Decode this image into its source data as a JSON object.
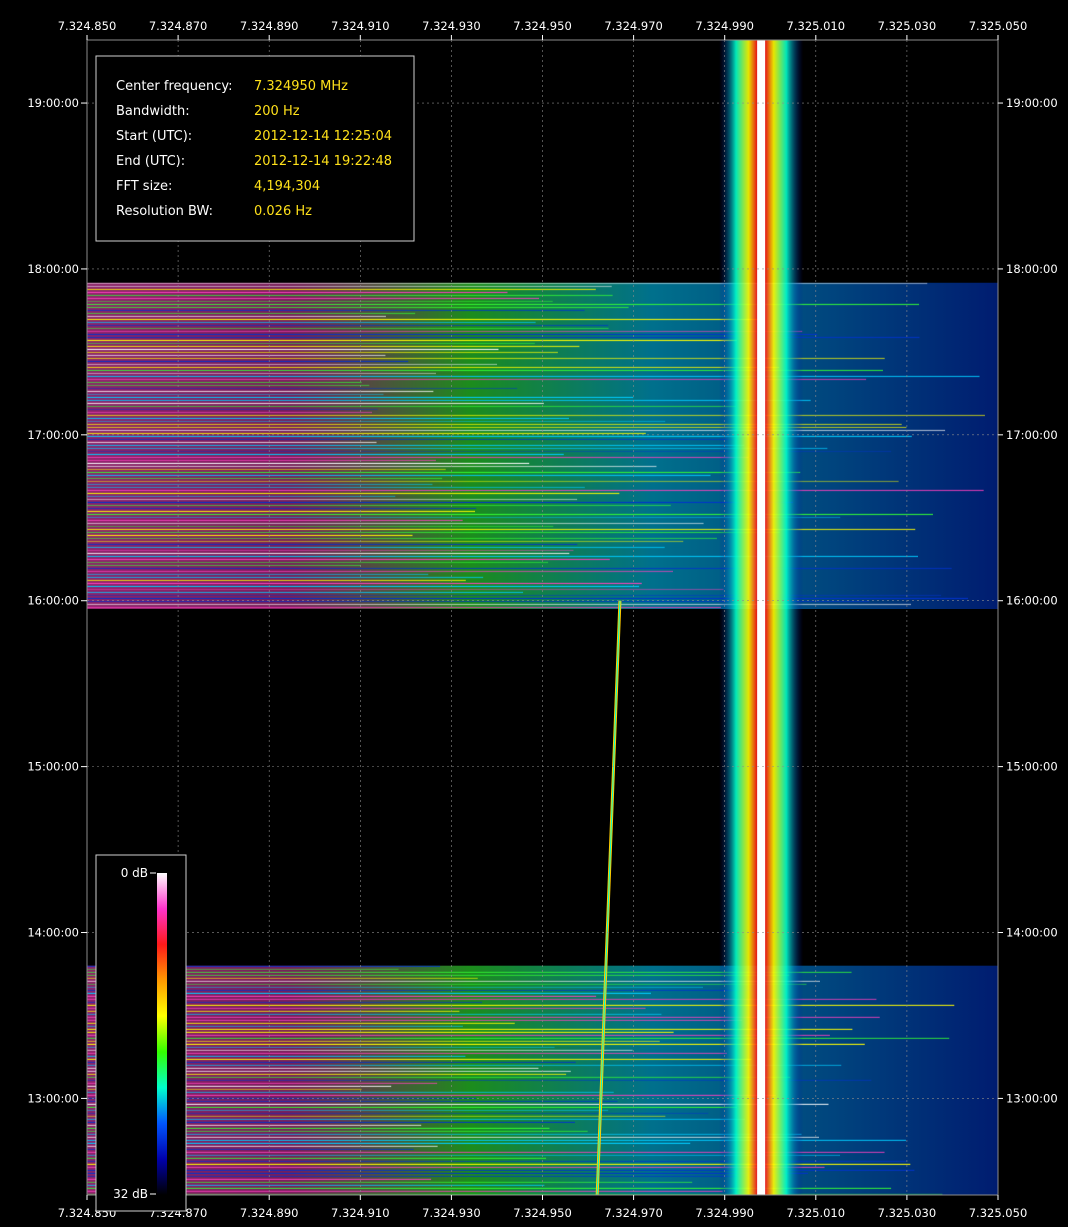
{
  "colors": {
    "background": "#000000",
    "grid": "#8c8c8c",
    "label_text": "#ffffff",
    "info_value": "#ffe11a"
  },
  "info": {
    "rows": [
      {
        "key": "Center frequency:",
        "value": "7.324950 MHz"
      },
      {
        "key": "Bandwidth:",
        "value": "200 Hz"
      },
      {
        "key": "Start (UTC):",
        "value": "2012-12-14 12:25:04"
      },
      {
        "key": "End (UTC):",
        "value": "2012-12-14 19:22:48"
      },
      {
        "key": "FFT size:",
        "value": "4,194,304"
      },
      {
        "key": "Resolution BW:",
        "value": "0.026 Hz"
      }
    ]
  },
  "scale": {
    "top_label": "0 dB",
    "bottom_label": "32 dB",
    "stops": [
      "#ffffff",
      "#ff33cc",
      "#ff1a1a",
      "#ff9900",
      "#ffff00",
      "#33ff00",
      "#00ffcc",
      "#0055ff",
      "#0000aa",
      "#000000"
    ]
  },
  "chart_data": {
    "type": "heatmap",
    "title": "",
    "xlabel": "",
    "ylabel": "",
    "x_unit": "MHz",
    "xlim": [
      7.32485,
      7.32505
    ],
    "ylim": [
      "12:25:04",
      "19:22:48"
    ],
    "x_ticks": [
      "7.324.850",
      "7.324.870",
      "7.324.890",
      "7.324.910",
      "7.324.930",
      "7.324.950",
      "7.324.970",
      "7.324.990",
      "7.325.010",
      "7.325.030",
      "7.325.050"
    ],
    "x_tick_values": [
      7.32485,
      7.32487,
      7.32489,
      7.32491,
      7.32493,
      7.32495,
      7.32497,
      7.32499,
      7.32501,
      7.32503,
      7.32505
    ],
    "y_ticks": [
      "19:00:00",
      "18:00:00",
      "17:00:00",
      "16:00:00",
      "15:00:00",
      "14:00:00",
      "13:00:00"
    ],
    "y_tick_hours": [
      19,
      18,
      17,
      16,
      15,
      14,
      13
    ],
    "grid": true,
    "color_scale_db": [
      0,
      32
    ],
    "features": [
      {
        "kind": "carrier",
        "freq_mhz": 7.324998,
        "from": "12:25:04",
        "to": "19:22:48",
        "level_db": 0
      },
      {
        "kind": "drifting-signal",
        "freq_mhz": [
          7.324962,
          7.324967
        ],
        "from": "12:25:04",
        "to": "16:00:00",
        "level_db": 14
      },
      {
        "kind": "broadband-noise",
        "from": "15:57:00",
        "to": "17:55:00",
        "level_db": 8
      },
      {
        "kind": "broadband-noise",
        "from": "12:25:04",
        "to": "13:48:00",
        "level_db": 20
      }
    ]
  }
}
